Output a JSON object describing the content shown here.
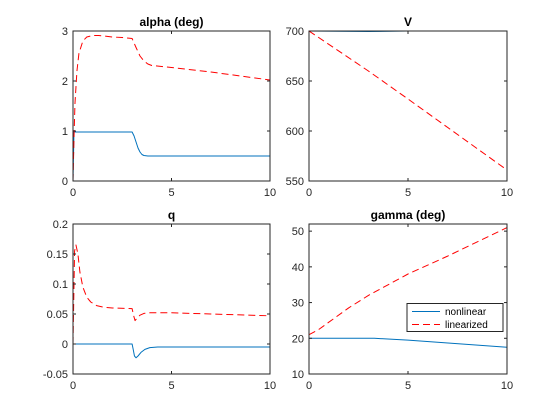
{
  "chart_data": [
    {
      "type": "line",
      "title": "alpha (deg)",
      "xlim": [
        0,
        10
      ],
      "ylim": [
        0,
        3
      ],
      "xticks": [
        0,
        5,
        10
      ],
      "yticks": [
        0,
        1,
        2,
        3
      ],
      "xtick_labels": [
        "0",
        "5",
        "10"
      ],
      "ytick_labels": [
        "0",
        "1",
        "2",
        "3"
      ],
      "grid": false,
      "series": [
        {
          "name": "nonlinear",
          "color": "#0072BD",
          "style": "solid",
          "x": [
            0,
            0.05,
            3.0,
            3.1,
            3.2,
            3.3,
            3.4,
            3.5,
            3.6,
            3.8,
            4.0,
            5.0,
            7.0,
            10.0
          ],
          "y": [
            0,
            0.98,
            0.98,
            0.9,
            0.78,
            0.66,
            0.58,
            0.53,
            0.51,
            0.5,
            0.5,
            0.5,
            0.5,
            0.5
          ]
        },
        {
          "name": "linearized",
          "color": "#FF0000",
          "style": "dashed",
          "x": [
            0,
            0.05,
            0.1,
            0.2,
            0.3,
            0.5,
            0.7,
            1.0,
            1.3,
            1.6,
            2.0,
            2.5,
            3.0,
            3.2,
            3.4,
            3.6,
            3.8,
            4.0,
            4.5,
            5.0,
            7.0,
            10.0
          ],
          "y": [
            0,
            0.85,
            1.55,
            2.2,
            2.55,
            2.8,
            2.88,
            2.91,
            2.91,
            2.9,
            2.88,
            2.87,
            2.85,
            2.67,
            2.5,
            2.4,
            2.34,
            2.31,
            2.29,
            2.27,
            2.18,
            2.02
          ]
        }
      ]
    },
    {
      "type": "line",
      "title": "V",
      "xlim": [
        0,
        10
      ],
      "ylim": [
        550,
        700
      ],
      "xticks": [
        0,
        5,
        10
      ],
      "yticks": [
        550,
        600,
        650,
        700
      ],
      "xtick_labels": [
        "0",
        "5",
        "10"
      ],
      "ytick_labels": [
        "550",
        "600",
        "650",
        "700"
      ],
      "grid": false,
      "series": [
        {
          "name": "nonlinear",
          "color": "#0072BD",
          "style": "solid",
          "x": [
            0,
            3,
            5,
            10
          ],
          "y": [
            700,
            699.5,
            700,
            701
          ]
        },
        {
          "name": "linearized",
          "color": "#FF0000",
          "style": "dashed",
          "x": [
            0,
            3,
            5,
            10
          ],
          "y": [
            700,
            660,
            632,
            561
          ]
        }
      ]
    },
    {
      "type": "line",
      "title": "q",
      "xlim": [
        0,
        10
      ],
      "ylim": [
        -0.05,
        0.2
      ],
      "xticks": [
        0,
        5,
        10
      ],
      "yticks": [
        -0.05,
        0,
        0.05,
        0.1,
        0.15,
        0.2
      ],
      "xtick_labels": [
        "0",
        "5",
        "10"
      ],
      "ytick_labels": [
        "-0.05",
        "0",
        "0.05",
        "0.1",
        "0.15",
        "0.2"
      ],
      "grid": false,
      "series": [
        {
          "name": "nonlinear",
          "color": "#0072BD",
          "style": "solid",
          "x": [
            0,
            3.0,
            3.05,
            3.12,
            3.2,
            3.3,
            3.45,
            3.65,
            3.9,
            4.3,
            5.0,
            10.0
          ],
          "y": [
            0,
            0,
            -0.008,
            -0.02,
            -0.023,
            -0.02,
            -0.014,
            -0.009,
            -0.006,
            -0.005,
            -0.005,
            -0.005
          ]
        },
        {
          "name": "linearized",
          "color": "#FF0000",
          "style": "dashed",
          "x": [
            0,
            0.08,
            0.15,
            0.25,
            0.35,
            0.5,
            0.7,
            0.9,
            1.2,
            1.6,
            2.0,
            3.0,
            3.08,
            3.15,
            3.25,
            3.4,
            3.6,
            3.9,
            4.3,
            5.0,
            7.0,
            10.0
          ],
          "y": [
            0,
            0.155,
            0.165,
            0.15,
            0.12,
            0.095,
            0.078,
            0.07,
            0.064,
            0.061,
            0.06,
            0.059,
            0.047,
            0.039,
            0.043,
            0.048,
            0.051,
            0.052,
            0.052,
            0.052,
            0.05,
            0.047
          ]
        }
      ]
    },
    {
      "type": "line",
      "title": "gamma (deg)",
      "xlim": [
        0,
        10
      ],
      "ylim": [
        10,
        52
      ],
      "xticks": [
        0,
        5,
        10
      ],
      "yticks": [
        10,
        20,
        30,
        40,
        50
      ],
      "xtick_labels": [
        "0",
        "5",
        "10"
      ],
      "ytick_labels": [
        "10",
        "20",
        "30",
        "40",
        "50"
      ],
      "grid": false,
      "legend": {
        "placement": "right",
        "entries": [
          "nonlinear",
          "linearized"
        ]
      },
      "series": [
        {
          "name": "nonlinear",
          "color": "#0072BD",
          "style": "solid",
          "x": [
            0,
            3.3,
            5,
            10
          ],
          "y": [
            20,
            20,
            19.5,
            17.5
          ]
        },
        {
          "name": "linearized",
          "color": "#FF0000",
          "style": "dashed",
          "x": [
            0,
            0.5,
            1,
            2,
            3,
            3.5,
            5,
            7,
            10
          ],
          "y": [
            21,
            22.5,
            24.5,
            28.5,
            32,
            33.5,
            38,
            43,
            51
          ]
        }
      ]
    }
  ]
}
